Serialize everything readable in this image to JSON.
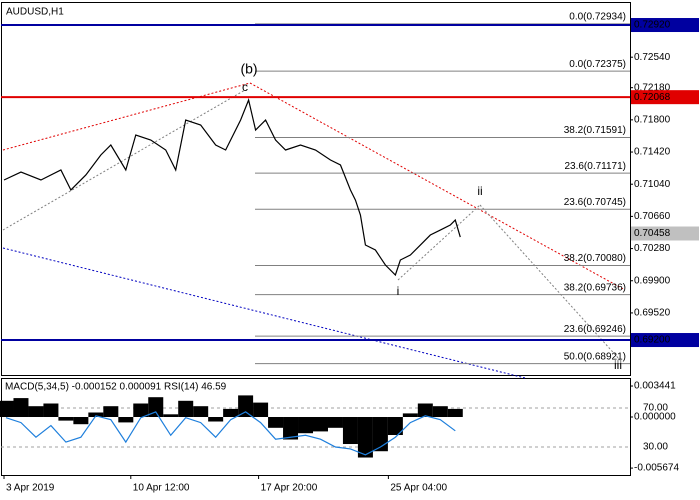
{
  "chart_data": [
    {
      "type": "line",
      "title": "AUDUSD,H1",
      "x": [
        3,
        20,
        40,
        60,
        70,
        85,
        100,
        110,
        125,
        135,
        150,
        165,
        175,
        185,
        200,
        215,
        225,
        240,
        248,
        255,
        265,
        275,
        285,
        300,
        315,
        330,
        340,
        350,
        355,
        360,
        365,
        375,
        385,
        395,
        400,
        410,
        420,
        430,
        440,
        450,
        455,
        460
      ],
      "series": [
        {
          "color": "#000000",
          "values": [
            0.7109,
            0.71184,
            0.7109,
            0.71208,
            0.70972,
            0.71149,
            0.71385,
            0.71503,
            0.71208,
            0.71621,
            0.71562,
            0.71444,
            0.71208,
            0.71798,
            0.71739,
            0.71503,
            0.71444,
            0.71798,
            0.72034,
            0.7168,
            0.71798,
            0.71562,
            0.71444,
            0.71503,
            0.71444,
            0.71326,
            0.71267,
            0.70972,
            0.70853,
            0.70676,
            0.70322,
            0.70263,
            0.70086,
            0.69968,
            0.70145,
            0.70204,
            0.70322,
            0.7044,
            0.70499,
            0.70558,
            0.70617,
            0.70416
          ]
        }
      ],
      "xlim": [
        0,
        630
      ],
      "ylim": [
        0.68787,
        0.7318
      ],
      "yticks": [
        {
          "value": 0.7254,
          "label": "0.72540"
        },
        {
          "value": 0.7218,
          "label": "0.72180"
        },
        {
          "value": 0.718,
          "label": "0.71800"
        },
        {
          "value": 0.7142,
          "label": "0.71420"
        },
        {
          "value": 0.7104,
          "label": "0.71040"
        },
        {
          "value": 0.7066,
          "label": "0.70660"
        },
        {
          "value": 0.7028,
          "label": "0.70280"
        },
        {
          "value": 0.699,
          "label": "0.69900"
        },
        {
          "value": 0.6952,
          "label": "0.69520"
        }
      ],
      "price_lines": [
        {
          "value": 0.7292,
          "label": "0.72920",
          "color": "#0000a0"
        },
        {
          "value": 0.72068,
          "label": "0.72068",
          "color": "#e00000"
        },
        {
          "value": 0.70458,
          "label": "0.70458",
          "color": "#c0c0c0"
        },
        {
          "value": 0.692,
          "label": "0.69200",
          "color": "#0000a0"
        }
      ],
      "levels": [
        {
          "value": 0.72934,
          "label": "0.0(0.72934)"
        },
        {
          "value": 0.72375,
          "label": "0.0(0.72375)"
        },
        {
          "value": 0.71591,
          "label": "38.2(0.71591)"
        },
        {
          "value": 0.71171,
          "label": "23.6(0.71171)"
        },
        {
          "value": 0.70745,
          "label": "23.6(0.70745)"
        },
        {
          "value": 0.7008,
          "label": "38.2(0.70080)"
        },
        {
          "value": 0.69736,
          "label": "38.2(0.69736)"
        },
        {
          "value": 0.69246,
          "label": "23.6(0.69246)"
        },
        {
          "value": 0.68921,
          "label": "50.0(0.68921)"
        }
      ],
      "annotations": [
        {
          "text": "(b)",
          "color": "#e00000"
        },
        {
          "text": "c",
          "color": "#808080"
        },
        {
          "text": "ii",
          "color": "#808080"
        },
        {
          "text": "i",
          "color": "#808080"
        },
        {
          "text": "iii",
          "color": "#808080"
        }
      ]
    },
    {
      "type": "line",
      "title": "MACD(5,34,5) -0.000152 0.000091 RSI(14) 46.59",
      "x": [
        5,
        20,
        35,
        50,
        65,
        80,
        95,
        110,
        125,
        140,
        155,
        170,
        185,
        200,
        215,
        230,
        245,
        260,
        275,
        290,
        305,
        320,
        335,
        350,
        365,
        380,
        395,
        410,
        425,
        440,
        455
      ],
      "series": [
        {
          "type": "bar",
          "color": "#000000",
          "values": [
            0.0018,
            0.0021,
            0.0012,
            0.0015,
            -0.0004,
            -0.0008,
            0.0005,
            0.0012,
            -0.0006,
            0.0015,
            0.0022,
            0.0003,
            0.0018,
            0.0012,
            -0.0005,
            0.0009,
            0.0024,
            0.0016,
            -0.0012,
            -0.0025,
            -0.0018,
            -0.0016,
            -0.0012,
            -0.003,
            -0.0045,
            -0.0038,
            -0.002,
            0.0004,
            0.0015,
            0.0012,
            0.0009
          ]
        },
        {
          "type": "line",
          "axis": "y2",
          "color": "#1e7fdc",
          "values": [
            60,
            55,
            40,
            52,
            35,
            40,
            62,
            58,
            35,
            60,
            66,
            42,
            60,
            55,
            40,
            58,
            66,
            55,
            38,
            40,
            42,
            38,
            30,
            28,
            22,
            30,
            40,
            55,
            62,
            58,
            46.59
          ]
        }
      ],
      "xlim": [
        0,
        630
      ],
      "ylim": [
        -0.00633,
        0.00411
      ],
      "yticks": [
        0.003441,
        {
          "value": 0,
          "label": "0.000000"
        },
        -0.005674
      ],
      "y2lim": [
        2.3,
        98.7
      ],
      "y2ticks": [
        {
          "value": 70,
          "label": "70.00"
        },
        {
          "value": 30,
          "label": "30.00"
        }
      ],
      "xticks": [
        {
          "value": 3,
          "label": "3 Apr 2019"
        },
        {
          "value": 130,
          "label": "10 Apr 12:00"
        },
        {
          "value": 258,
          "label": "17 Apr 20:00"
        },
        {
          "value": 388,
          "label": "25 Apr 04:00"
        }
      ]
    }
  ]
}
